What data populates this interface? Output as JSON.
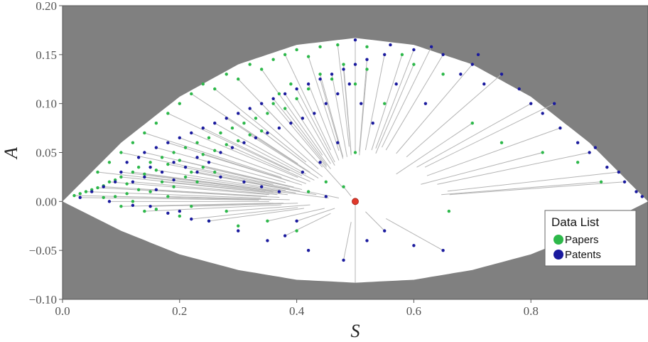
{
  "chart_data": {
    "type": "scatter",
    "title": "",
    "xlabel": "S",
    "ylabel": "A",
    "xlim": [
      0.0,
      1.0
    ],
    "ylim": [
      -0.1,
      0.2
    ],
    "x_ticks": [
      "0.0",
      "0.2",
      "0.4",
      "0.6",
      "0.8"
    ],
    "x_tick_values": [
      0.0,
      0.2,
      0.4,
      0.6,
      0.8
    ],
    "y_ticks": [
      "0.20",
      "0.15",
      "0.10",
      "0.05",
      "0.00",
      "−0.05",
      "−0.10"
    ],
    "y_tick_values": [
      0.2,
      0.15,
      0.1,
      0.05,
      0.0,
      -0.05,
      -0.1
    ],
    "grid": false,
    "background_color": "#808080",
    "feasible_region_color": "#ffffff",
    "connector_line_color": "#b4b4b4",
    "upper_boundary": [
      [
        0.0,
        0.0
      ],
      [
        0.1,
        0.06
      ],
      [
        0.2,
        0.107
      ],
      [
        0.3,
        0.14
      ],
      [
        0.4,
        0.16
      ],
      [
        0.5,
        0.167
      ],
      [
        0.6,
        0.16
      ],
      [
        0.7,
        0.14
      ],
      [
        0.8,
        0.107
      ],
      [
        0.9,
        0.06
      ],
      [
        1.0,
        0.0
      ]
    ],
    "lower_boundary": [
      [
        0.0,
        0.0
      ],
      [
        0.1,
        -0.03
      ],
      [
        0.2,
        -0.054
      ],
      [
        0.3,
        -0.07
      ],
      [
        0.4,
        -0.08
      ],
      [
        0.5,
        -0.083
      ],
      [
        0.6,
        -0.08
      ],
      [
        0.7,
        -0.07
      ],
      [
        0.8,
        -0.054
      ],
      [
        0.9,
        -0.03
      ],
      [
        1.0,
        0.0
      ]
    ],
    "reference_point": {
      "x": 0.5,
      "y": 0.0,
      "color": "#e0392b"
    },
    "reference_line": {
      "x": 0.5,
      "y_from": 0.0,
      "y_to": -0.083
    },
    "legend": {
      "title": "Data List",
      "position": "bottom-right",
      "items": [
        {
          "label": "Papers",
          "color": "#2db84a"
        },
        {
          "label": "Patents",
          "color": "#1a1a9e"
        }
      ]
    },
    "series": [
      {
        "name": "Papers",
        "color": "#2db84a",
        "points": [
          [
            0.02,
            0.006
          ],
          [
            0.03,
            0.008
          ],
          [
            0.04,
            0.01
          ],
          [
            0.05,
            0.012
          ],
          [
            0.06,
            0.014
          ],
          [
            0.07,
            0.016
          ],
          [
            0.08,
            0.02
          ],
          [
            0.09,
            0.022
          ],
          [
            0.1,
            0.025
          ],
          [
            0.11,
            0.018
          ],
          [
            0.12,
            0.03
          ],
          [
            0.13,
            0.035
          ],
          [
            0.14,
            0.028
          ],
          [
            0.15,
            0.04
          ],
          [
            0.16,
            0.032
          ],
          [
            0.17,
            0.045
          ],
          [
            0.18,
            0.038
          ],
          [
            0.19,
            0.05
          ],
          [
            0.2,
            0.042
          ],
          [
            0.21,
            0.055
          ],
          [
            0.22,
            0.03
          ],
          [
            0.23,
            0.06
          ],
          [
            0.24,
            0.048
          ],
          [
            0.25,
            0.065
          ],
          [
            0.26,
            0.052
          ],
          [
            0.27,
            0.07
          ],
          [
            0.28,
            0.058
          ],
          [
            0.29,
            0.075
          ],
          [
            0.3,
            0.062
          ],
          [
            0.31,
            0.08
          ],
          [
            0.32,
            0.068
          ],
          [
            0.33,
            0.085
          ],
          [
            0.34,
            0.072
          ],
          [
            0.35,
            0.09
          ],
          [
            0.36,
            0.1
          ],
          [
            0.37,
            0.11
          ],
          [
            0.38,
            0.095
          ],
          [
            0.39,
            0.12
          ],
          [
            0.4,
            0.105
          ],
          [
            0.42,
            0.115
          ],
          [
            0.44,
            0.13
          ],
          [
            0.46,
            0.125
          ],
          [
            0.48,
            0.14
          ],
          [
            0.5,
            0.12
          ],
          [
            0.52,
            0.135
          ],
          [
            0.55,
            0.1
          ],
          [
            0.6,
            0.14
          ],
          [
            0.65,
            0.13
          ],
          [
            0.1,
            -0.005
          ],
          [
            0.12,
            0.0
          ],
          [
            0.14,
            -0.01
          ],
          [
            0.16,
            -0.008
          ],
          [
            0.18,
            0.005
          ],
          [
            0.2,
            -0.015
          ],
          [
            0.22,
            -0.005
          ],
          [
            0.25,
            -0.02
          ],
          [
            0.28,
            -0.01
          ],
          [
            0.3,
            -0.025
          ],
          [
            0.35,
            -0.02
          ],
          [
            0.4,
            -0.03
          ],
          [
            0.42,
            0.01
          ],
          [
            0.45,
            0.02
          ],
          [
            0.48,
            0.015
          ],
          [
            0.5,
            0.05
          ],
          [
            0.06,
            0.03
          ],
          [
            0.08,
            0.04
          ],
          [
            0.1,
            0.05
          ],
          [
            0.12,
            0.06
          ],
          [
            0.14,
            0.07
          ],
          [
            0.16,
            0.08
          ],
          [
            0.18,
            0.09
          ],
          [
            0.2,
            0.1
          ],
          [
            0.22,
            0.11
          ],
          [
            0.24,
            0.12
          ],
          [
            0.26,
            0.115
          ],
          [
            0.28,
            0.13
          ],
          [
            0.3,
            0.125
          ],
          [
            0.32,
            0.14
          ],
          [
            0.34,
            0.135
          ],
          [
            0.36,
            0.145
          ],
          [
            0.38,
            0.15
          ],
          [
            0.4,
            0.155
          ],
          [
            0.42,
            0.148
          ],
          [
            0.44,
            0.158
          ],
          [
            0.47,
            0.16
          ],
          [
            0.52,
            0.158
          ],
          [
            0.58,
            0.15
          ],
          [
            0.66,
            -0.01
          ],
          [
            0.7,
            0.08
          ],
          [
            0.75,
            0.06
          ],
          [
            0.82,
            0.05
          ],
          [
            0.88,
            0.04
          ],
          [
            0.92,
            0.02
          ],
          [
            0.15,
            0.01
          ],
          [
            0.17,
            0.02
          ],
          [
            0.19,
            0.015
          ],
          [
            0.21,
            0.025
          ],
          [
            0.23,
            0.02
          ],
          [
            0.13,
            0.012
          ],
          [
            0.11,
            0.008
          ],
          [
            0.09,
            0.005
          ],
          [
            0.07,
            0.004
          ],
          [
            0.24,
            0.035
          ],
          [
            0.26,
            0.03
          ]
        ]
      },
      {
        "name": "Patents",
        "color": "#1a1a9e",
        "points": [
          [
            0.03,
            0.004
          ],
          [
            0.05,
            0.01
          ],
          [
            0.07,
            0.015
          ],
          [
            0.09,
            0.02
          ],
          [
            0.1,
            0.03
          ],
          [
            0.11,
            0.04
          ],
          [
            0.12,
            0.02
          ],
          [
            0.13,
            0.045
          ],
          [
            0.14,
            0.05
          ],
          [
            0.15,
            0.035
          ],
          [
            0.16,
            0.055
          ],
          [
            0.17,
            0.03
          ],
          [
            0.18,
            0.06
          ],
          [
            0.19,
            0.04
          ],
          [
            0.2,
            0.065
          ],
          [
            0.21,
            0.035
          ],
          [
            0.22,
            0.07
          ],
          [
            0.23,
            0.045
          ],
          [
            0.24,
            0.075
          ],
          [
            0.25,
            0.04
          ],
          [
            0.26,
            0.08
          ],
          [
            0.27,
            0.05
          ],
          [
            0.28,
            0.085
          ],
          [
            0.29,
            0.055
          ],
          [
            0.3,
            0.09
          ],
          [
            0.31,
            0.06
          ],
          [
            0.32,
            0.095
          ],
          [
            0.33,
            0.065
          ],
          [
            0.34,
            0.1
          ],
          [
            0.35,
            0.07
          ],
          [
            0.36,
            0.105
          ],
          [
            0.37,
            0.075
          ],
          [
            0.38,
            0.11
          ],
          [
            0.39,
            0.08
          ],
          [
            0.4,
            0.115
          ],
          [
            0.41,
            0.085
          ],
          [
            0.42,
            0.12
          ],
          [
            0.43,
            0.09
          ],
          [
            0.44,
            0.125
          ],
          [
            0.45,
            0.1
          ],
          [
            0.46,
            0.13
          ],
          [
            0.47,
            0.11
          ],
          [
            0.48,
            0.135
          ],
          [
            0.49,
            0.12
          ],
          [
            0.5,
            0.14
          ],
          [
            0.51,
            0.1
          ],
          [
            0.52,
            0.145
          ],
          [
            0.53,
            0.08
          ],
          [
            0.55,
            0.15
          ],
          [
            0.57,
            0.12
          ],
          [
            0.6,
            0.155
          ],
          [
            0.62,
            0.1
          ],
          [
            0.65,
            0.15
          ],
          [
            0.68,
            0.13
          ],
          [
            0.7,
            0.14
          ],
          [
            0.72,
            0.12
          ],
          [
            0.75,
            0.13
          ],
          [
            0.78,
            0.115
          ],
          [
            0.8,
            0.1
          ],
          [
            0.82,
            0.09
          ],
          [
            0.85,
            0.075
          ],
          [
            0.88,
            0.06
          ],
          [
            0.9,
            0.05
          ],
          [
            0.93,
            0.035
          ],
          [
            0.96,
            0.02
          ],
          [
            0.99,
            0.005
          ],
          [
            0.5,
            0.0
          ],
          [
            0.45,
            0.005
          ],
          [
            0.4,
            -0.02
          ],
          [
            0.35,
            -0.04
          ],
          [
            0.48,
            -0.06
          ],
          [
            0.52,
            -0.04
          ],
          [
            0.55,
            -0.03
          ],
          [
            0.6,
            -0.045
          ],
          [
            0.65,
            -0.05
          ],
          [
            0.42,
            -0.05
          ],
          [
            0.38,
            -0.035
          ],
          [
            0.3,
            -0.03
          ],
          [
            0.25,
            -0.02
          ],
          [
            0.2,
            -0.01
          ],
          [
            0.15,
            -0.005
          ],
          [
            0.18,
            -0.012
          ],
          [
            0.22,
            -0.018
          ],
          [
            0.12,
            -0.004
          ],
          [
            0.08,
            0.0
          ],
          [
            0.16,
            0.012
          ],
          [
            0.14,
            0.025
          ],
          [
            0.19,
            0.022
          ],
          [
            0.23,
            0.03
          ],
          [
            0.27,
            0.025
          ],
          [
            0.31,
            0.02
          ],
          [
            0.34,
            0.015
          ],
          [
            0.37,
            0.01
          ],
          [
            0.41,
            0.03
          ],
          [
            0.44,
            0.04
          ],
          [
            0.47,
            0.06
          ],
          [
            0.5,
            0.165
          ],
          [
            0.56,
            0.16
          ],
          [
            0.63,
            0.158
          ],
          [
            0.71,
            0.15
          ],
          [
            0.84,
            0.1
          ],
          [
            0.91,
            0.055
          ],
          [
            0.95,
            0.03
          ],
          [
            0.98,
            0.01
          ]
        ]
      }
    ]
  }
}
